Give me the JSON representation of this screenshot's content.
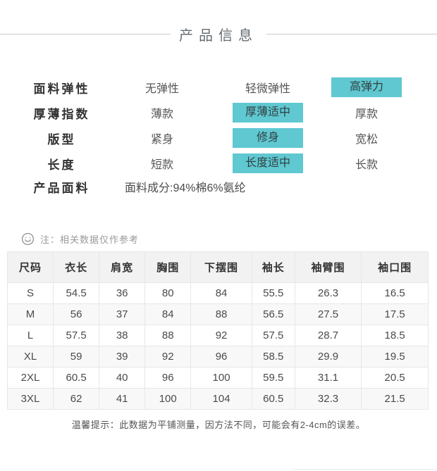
{
  "header": {
    "title": "产品信息"
  },
  "attributes": {
    "rows": [
      {
        "label": "面料弹性",
        "options": [
          {
            "text": "无弹性",
            "selected": false
          },
          {
            "text": "轻微弹性",
            "selected": false
          },
          {
            "text": "高弹力",
            "selected": true
          }
        ]
      },
      {
        "label": "厚薄指数",
        "options": [
          {
            "text": "薄款",
            "selected": false
          },
          {
            "text": "厚薄适中",
            "selected": true
          },
          {
            "text": "厚款",
            "selected": false
          }
        ]
      },
      {
        "label": "版型",
        "options": [
          {
            "text": "紧身",
            "selected": false
          },
          {
            "text": "修身",
            "selected": true
          },
          {
            "text": "宽松",
            "selected": false
          }
        ]
      },
      {
        "label": "长度",
        "options": [
          {
            "text": "短款",
            "selected": false
          },
          {
            "text": "长度适中",
            "selected": true
          },
          {
            "text": "长款",
            "selected": false
          }
        ]
      }
    ],
    "fabric": {
      "label": "产品面料",
      "value": "面料成分:94%棉6%氨纶"
    }
  },
  "note": {
    "icon": "smiley-icon",
    "text": "注：相关数据仅作参考"
  },
  "size_table": {
    "headers": [
      "尺码",
      "衣长",
      "肩宽",
      "胸围",
      "下摆围",
      "袖长",
      "袖臂围",
      "袖口围"
    ],
    "rows": [
      [
        "S",
        "54.5",
        "36",
        "80",
        "84",
        "55.5",
        "26.3",
        "16.5"
      ],
      [
        "M",
        "56",
        "37",
        "84",
        "88",
        "56.5",
        "27.5",
        "17.5"
      ],
      [
        "L",
        "57.5",
        "38",
        "88",
        "92",
        "57.5",
        "28.7",
        "18.5"
      ],
      [
        "XL",
        "59",
        "39",
        "92",
        "96",
        "58.5",
        "29.9",
        "19.5"
      ],
      [
        "2XL",
        "60.5",
        "40",
        "96",
        "100",
        "59.5",
        "31.1",
        "20.5"
      ],
      [
        "3XL",
        "62",
        "41",
        "100",
        "104",
        "60.5",
        "32.3",
        "21.5"
      ]
    ]
  },
  "footer": {
    "tip": "温馨提示：此数据为平铺测量，因方法不同，可能会有2-4cm的误差。"
  },
  "colors": {
    "highlight": "#5fc8d1",
    "title_text": "#666d74",
    "divider": "#cccccc",
    "table_border": "#e7e7e7",
    "table_header_bg": "#f2f2f2",
    "table_alt_row_bg": "#f8f8f8"
  }
}
